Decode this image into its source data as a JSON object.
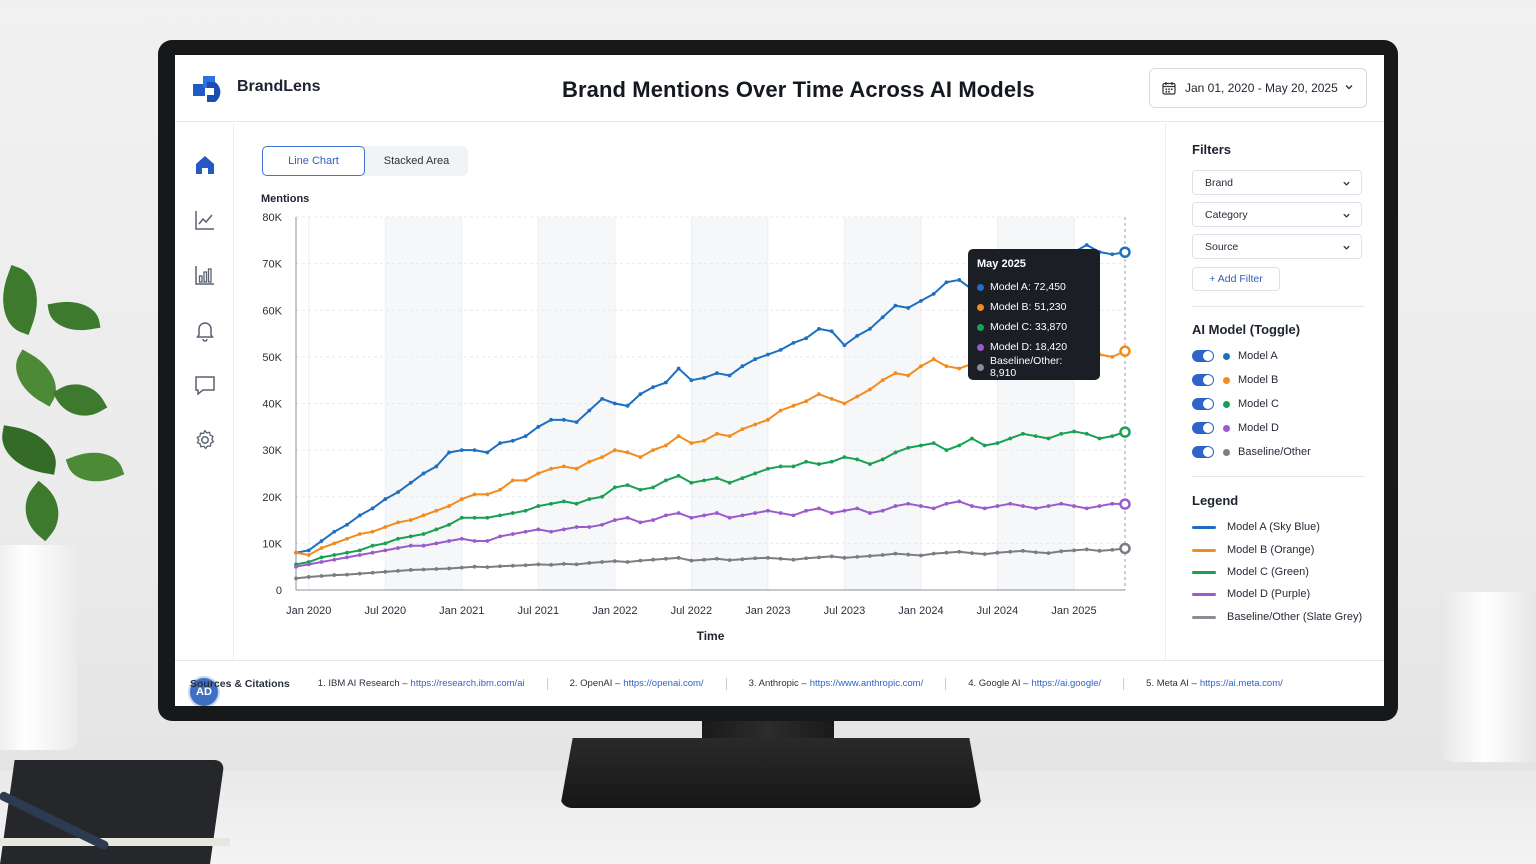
{
  "app": {
    "brand": "BrandLens"
  },
  "header": {
    "title": "Brand Mentions Over Time Across AI Models",
    "date_range": "Jan 01, 2020 - May 20, 2025"
  },
  "user": {
    "initials": "AD"
  },
  "tabs": [
    {
      "label": "Line Chart",
      "active": true
    },
    {
      "label": "Stacked Area",
      "active": false
    }
  ],
  "filters": {
    "title": "Filters",
    "selects": [
      "Brand",
      "Category",
      "Source"
    ],
    "add_filter": "+ Add Filter"
  },
  "ai_models": {
    "title": "AI Model (Toggle)",
    "items": [
      {
        "label": "Model A",
        "color": "#1f6fc1",
        "on": true
      },
      {
        "label": "Model B",
        "color": "#f28c1e",
        "on": true
      },
      {
        "label": "Model C",
        "color": "#1aa052",
        "on": true
      },
      {
        "label": "Model D",
        "color": "#9a5ccd",
        "on": true
      },
      {
        "label": "Baseline/Other",
        "color": "#7a7d83",
        "on": true
      }
    ]
  },
  "legend": {
    "title": "Legend",
    "items": [
      {
        "label": "Model A (Sky Blue)",
        "color": "#1f6fc1"
      },
      {
        "label": "Model B (Orange)",
        "color": "#f28c1e"
      },
      {
        "label": "Model C (Green)",
        "color": "#1aa052"
      },
      {
        "label": "Model D (Purple)",
        "color": "#9a5ccd"
      },
      {
        "label": "Baseline/Other (Slate Grey)",
        "color": "#7a7d83"
      }
    ]
  },
  "tooltip": {
    "title": "May 2025",
    "rows": [
      {
        "text": "Model A: 72,450",
        "color": "#1f6fc1"
      },
      {
        "text": "Model B: 51,230",
        "color": "#f28c1e"
      },
      {
        "text": "Model C: 33,870",
        "color": "#1aa052"
      },
      {
        "text": "Model D: 18,420",
        "color": "#9a5ccd"
      },
      {
        "text": "Baseline/Other: 8,910",
        "color": "#8a8d93"
      }
    ]
  },
  "footer": {
    "title": "Sources & Citations",
    "citations": [
      {
        "label": "1.  IBM AI Research –",
        "url": "https://research.ibm.com/ai"
      },
      {
        "label": "2.  OpenAI –",
        "url": "https://openai.com/"
      },
      {
        "label": "3.  Anthropic –",
        "url": "https://www.anthropic.com/"
      },
      {
        "label": "4.  Google AI –",
        "url": "https://ai.google/"
      },
      {
        "label": "5.  Meta AI –",
        "url": "https://ai.meta.com/"
      }
    ]
  },
  "chart_data": {
    "type": "line",
    "title": "",
    "xlabel": "Time",
    "ylabel": "Mentions",
    "ylim": [
      0,
      80000
    ],
    "yticks": [
      0,
      10000,
      20000,
      30000,
      40000,
      50000,
      60000,
      70000,
      80000
    ],
    "ytick_labels": [
      "0",
      "10K",
      "20K",
      "30K",
      "40K",
      "50K",
      "60K",
      "70K",
      "80K"
    ],
    "xlim": [
      "2019-12",
      "2025-05"
    ],
    "xticks": [
      "2020-01",
      "2020-07",
      "2021-01",
      "2021-07",
      "2022-01",
      "2022-07",
      "2023-01",
      "2023-07",
      "2024-01",
      "2024-07",
      "2025-01"
    ],
    "xtick_labels": [
      "Jan 2020",
      "Jul 2020",
      "Jan 2021",
      "Jul 2021",
      "Jan 2022",
      "Jul 2022",
      "Jan 2023",
      "Jul 2023",
      "Jan 2024",
      "Jul 2024",
      "Jan 2025"
    ],
    "grid": true,
    "hover": "2025-05",
    "x": [
      "2019-12",
      "2020-01",
      "2020-02",
      "2020-03",
      "2020-04",
      "2020-05",
      "2020-06",
      "2020-07",
      "2020-08",
      "2020-09",
      "2020-10",
      "2020-11",
      "2020-12",
      "2021-01",
      "2021-02",
      "2021-03",
      "2021-04",
      "2021-05",
      "2021-06",
      "2021-07",
      "2021-08",
      "2021-09",
      "2021-10",
      "2021-11",
      "2021-12",
      "2022-01",
      "2022-02",
      "2022-03",
      "2022-04",
      "2022-05",
      "2022-06",
      "2022-07",
      "2022-08",
      "2022-09",
      "2022-10",
      "2022-11",
      "2022-12",
      "2023-01",
      "2023-02",
      "2023-03",
      "2023-04",
      "2023-05",
      "2023-06",
      "2023-07",
      "2023-08",
      "2023-09",
      "2023-10",
      "2023-11",
      "2023-12",
      "2024-01",
      "2024-02",
      "2024-03",
      "2024-04",
      "2024-05",
      "2024-06",
      "2024-07",
      "2024-08",
      "2024-09",
      "2024-10",
      "2024-11",
      "2024-12",
      "2025-01",
      "2025-02",
      "2025-03",
      "2025-04",
      "2025-05"
    ],
    "series": [
      {
        "name": "Model A",
        "color": "#1f6fc1",
        "values": [
          8000,
          8500,
          10500,
          12500,
          14000,
          16000,
          17500,
          19500,
          21000,
          23000,
          25000,
          26500,
          29500,
          30000,
          30000,
          29500,
          31500,
          32000,
          33000,
          35000,
          36500,
          36500,
          36000,
          38500,
          41000,
          40000,
          39500,
          42000,
          43500,
          44500,
          47500,
          45000,
          45500,
          46500,
          46000,
          48000,
          49500,
          50500,
          51500,
          53000,
          54000,
          56000,
          55500,
          52500,
          54500,
          56000,
          58500,
          61000,
          60500,
          62000,
          63500,
          66000,
          66500,
          64500,
          67000,
          68500,
          69000,
          68500,
          71000,
          70500,
          71500,
          72500,
          74000,
          72500,
          72000,
          72450
        ]
      },
      {
        "name": "Model B",
        "color": "#f28c1e",
        "values": [
          8000,
          7500,
          9000,
          10000,
          11000,
          12000,
          12500,
          13500,
          14500,
          15000,
          16000,
          17000,
          18000,
          19500,
          20500,
          20500,
          21500,
          23500,
          23500,
          25000,
          26000,
          26500,
          26000,
          27500,
          28500,
          30000,
          29500,
          28500,
          30000,
          31000,
          33000,
          31500,
          32000,
          33500,
          33000,
          34500,
          35500,
          36500,
          38500,
          39500,
          40500,
          42000,
          41000,
          40000,
          41500,
          43000,
          45000,
          46500,
          46000,
          48000,
          49500,
          48000,
          47500,
          48500,
          50500,
          50000,
          51000,
          50500,
          49000,
          48500,
          50000,
          51500,
          51500,
          50500,
          50000,
          51230
        ]
      },
      {
        "name": "Model C",
        "color": "#1aa052",
        "values": [
          5500,
          6000,
          7000,
          7500,
          8000,
          8500,
          9500,
          10000,
          11000,
          11500,
          12000,
          13000,
          14000,
          15500,
          15500,
          15500,
          16000,
          16500,
          17000,
          18000,
          18500,
          19000,
          18500,
          19500,
          20000,
          22000,
          22500,
          21500,
          22000,
          23500,
          24500,
          23000,
          23500,
          24000,
          23000,
          24000,
          25000,
          26000,
          26500,
          26500,
          27500,
          27000,
          27500,
          28500,
          28000,
          27000,
          28000,
          29500,
          30500,
          31000,
          31500,
          30000,
          31000,
          32500,
          31000,
          31500,
          32500,
          33500,
          33000,
          32500,
          33500,
          34000,
          33500,
          32500,
          33000,
          33870
        ]
      },
      {
        "name": "Model D",
        "color": "#9a5ccd",
        "values": [
          5000,
          5500,
          6000,
          6500,
          7000,
          7500,
          8000,
          8500,
          9000,
          9500,
          9500,
          10000,
          10500,
          11000,
          10500,
          10500,
          11500,
          12000,
          12500,
          13000,
          12500,
          13000,
          13500,
          13500,
          14000,
          15000,
          15500,
          14500,
          15000,
          16000,
          16500,
          15500,
          16000,
          16500,
          15500,
          16000,
          16500,
          17000,
          16500,
          16000,
          17000,
          17500,
          16500,
          17000,
          17500,
          16500,
          17000,
          18000,
          18500,
          18000,
          17500,
          18500,
          19000,
          18000,
          17500,
          18000,
          18500,
          18000,
          17500,
          18000,
          18500,
          18000,
          17500,
          18000,
          18500,
          18420
        ]
      },
      {
        "name": "Baseline/Other",
        "color": "#7a7d83",
        "values": [
          2500,
          2800,
          3000,
          3200,
          3300,
          3500,
          3700,
          3900,
          4100,
          4300,
          4400,
          4500,
          4600,
          4800,
          5000,
          4900,
          5100,
          5200,
          5300,
          5500,
          5400,
          5600,
          5500,
          5800,
          6000,
          6200,
          6000,
          6300,
          6500,
          6700,
          6900,
          6300,
          6500,
          6700,
          6400,
          6600,
          6800,
          6900,
          6700,
          6500,
          6800,
          7000,
          7200,
          6900,
          7100,
          7300,
          7500,
          7800,
          7600,
          7400,
          7800,
          8000,
          8200,
          7900,
          7700,
          8000,
          8200,
          8400,
          8100,
          7900,
          8300,
          8500,
          8700,
          8400,
          8600,
          8910
        ]
      }
    ]
  }
}
